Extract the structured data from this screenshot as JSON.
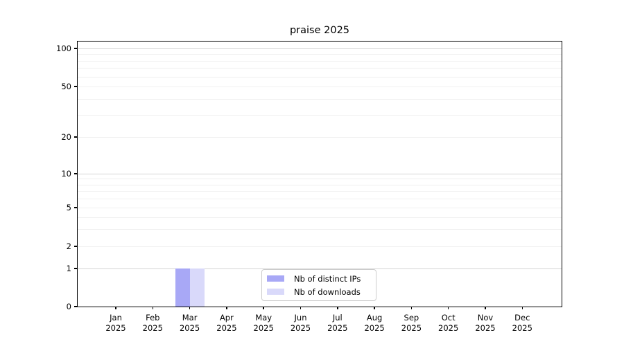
{
  "chart_data": {
    "type": "bar",
    "title": "praise 2025",
    "x_categories": [
      {
        "month": "Jan",
        "year": "2025"
      },
      {
        "month": "Feb",
        "year": "2025"
      },
      {
        "month": "Mar",
        "year": "2025"
      },
      {
        "month": "Apr",
        "year": "2025"
      },
      {
        "month": "May",
        "year": "2025"
      },
      {
        "month": "Jun",
        "year": "2025"
      },
      {
        "month": "Jul",
        "year": "2025"
      },
      {
        "month": "Aug",
        "year": "2025"
      },
      {
        "month": "Sep",
        "year": "2025"
      },
      {
        "month": "Oct",
        "year": "2025"
      },
      {
        "month": "Nov",
        "year": "2025"
      },
      {
        "month": "Dec",
        "year": "2025"
      }
    ],
    "series": [
      {
        "name": "Nb of distinct IPs",
        "color": "#a8a8f6",
        "values": [
          0,
          0,
          1,
          0,
          0,
          0,
          0,
          0,
          0,
          0,
          0,
          0
        ]
      },
      {
        "name": "Nb of downloads",
        "color": "#d9d9fa",
        "values": [
          0,
          0,
          1,
          0,
          0,
          0,
          0,
          0,
          0,
          0,
          0,
          0
        ]
      }
    ],
    "y_axis": {
      "scale": "symlog",
      "ticks": [
        0,
        1,
        2,
        5,
        10,
        20,
        50,
        100
      ],
      "major_gridline_values": [
        1,
        10,
        100
      ],
      "minor_gridline_values": [
        2,
        3,
        4,
        5,
        6,
        7,
        8,
        9,
        20,
        30,
        40,
        50,
        60,
        70,
        80,
        90
      ],
      "range": [
        0,
        110
      ]
    },
    "grid": "horizontal",
    "legend_position": "lower center",
    "colors": {
      "major_gridline": "#d4d4d4",
      "minor_gridline": "#f0f0f0",
      "spine": "#000000",
      "legend_border": "#cccccc"
    }
  }
}
